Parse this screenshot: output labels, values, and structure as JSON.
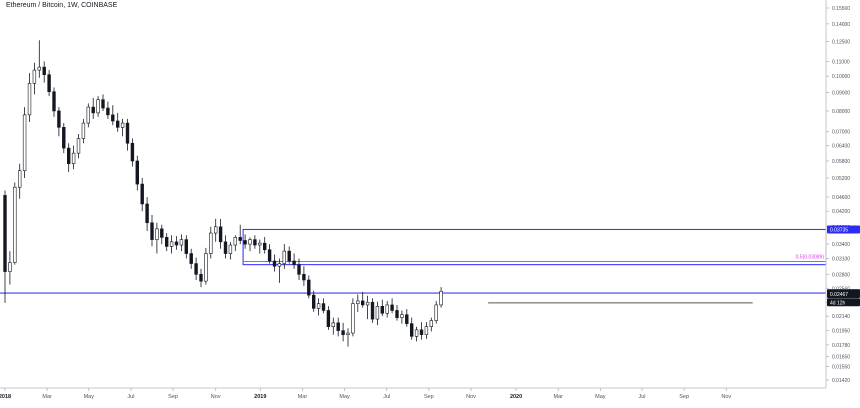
{
  "chart_data": {
    "type": "candlestick",
    "title": "Ethereum / Bitcoin, 1W, COINBASE",
    "ylim": [
      0.0142,
      0.155
    ],
    "y_ticks": [
      "0.15500",
      "0.14000",
      "0.12500",
      "0.11000",
      "0.10000",
      "0.09000",
      "0.08000",
      "0.07000",
      "0.06400",
      "0.05800",
      "0.05200",
      "0.04600",
      "0.04200",
      "0.03800",
      "0.03400",
      "0.03100",
      "0.02800",
      "0.02560",
      "0.02340",
      "0.02140",
      "0.01950",
      "0.01780",
      "0.01650",
      "0.01550",
      "0.01420"
    ],
    "x_ticks": [
      "2018",
      "Mar",
      "May",
      "Jul",
      "Sep",
      "Nov",
      "2019",
      "Mar",
      "May",
      "Jul",
      "Sep",
      "Nov",
      "2020",
      "Mar",
      "May",
      "Jul",
      "Sep",
      "Nov"
    ],
    "price_badges": [
      {
        "label": "0.03735",
        "price": 0.03735,
        "color": "#2c2cf0"
      },
      {
        "label": "0.02483",
        "price": 0.02483,
        "color": "#2c2cf0"
      },
      {
        "label": "0.02467",
        "price": 0.02467,
        "color": "#131722"
      },
      {
        "label": "4d 12h",
        "price": 0.0234,
        "color": "#131722"
      }
    ],
    "horizontal_lines": [
      {
        "price": 0.02483,
        "color": "#3b3bff",
        "full_width": true
      }
    ],
    "rectangles": [
      {
        "from_week": 49,
        "to_week": 173,
        "top": 0.03735,
        "bottom": 0.0298,
        "color": "#3b3bff"
      }
    ],
    "extra_lines": [
      {
        "from_week": 49,
        "to_week": 179,
        "price": 0.0304,
        "color": "#e23be8"
      },
      {
        "from_week": 99,
        "to_week": 153,
        "price": 0.0233,
        "color": "#555555"
      }
    ],
    "fib_label": {
      "text": "0.5(0.03089)",
      "price": 0.0307,
      "color": "#e23be8"
    },
    "candles": [
      [
        0.0465,
        0.048,
        0.0233,
        0.0285
      ],
      [
        0.0285,
        0.0325,
        0.0262,
        0.0302
      ],
      [
        0.0302,
        0.0505,
        0.0298,
        0.049
      ],
      [
        0.049,
        0.057,
        0.0455,
        0.0545
      ],
      [
        0.0545,
        0.082,
        0.052,
        0.078
      ],
      [
        0.078,
        0.102,
        0.0745,
        0.0955
      ],
      [
        0.0955,
        0.109,
        0.089,
        0.104
      ],
      [
        0.104,
        0.126,
        0.099,
        0.106
      ],
      [
        0.106,
        0.11,
        0.096,
        0.101
      ],
      [
        0.101,
        0.104,
        0.088,
        0.0905
      ],
      [
        0.0905,
        0.093,
        0.077,
        0.08
      ],
      [
        0.08,
        0.082,
        0.068,
        0.072
      ],
      [
        0.072,
        0.074,
        0.061,
        0.063
      ],
      [
        0.063,
        0.065,
        0.054,
        0.057
      ],
      [
        0.057,
        0.064,
        0.055,
        0.061
      ],
      [
        0.061,
        0.069,
        0.059,
        0.067
      ],
      [
        0.067,
        0.076,
        0.065,
        0.074
      ],
      [
        0.074,
        0.084,
        0.072,
        0.082
      ],
      [
        0.082,
        0.087,
        0.076,
        0.079
      ],
      [
        0.079,
        0.088,
        0.077,
        0.086
      ],
      [
        0.086,
        0.089,
        0.08,
        0.0815
      ],
      [
        0.0815,
        0.085,
        0.076,
        0.078
      ],
      [
        0.078,
        0.083,
        0.073,
        0.075
      ],
      [
        0.075,
        0.079,
        0.07,
        0.072
      ],
      [
        0.072,
        0.076,
        0.068,
        0.074
      ],
      [
        0.074,
        0.076,
        0.062,
        0.065
      ],
      [
        0.065,
        0.067,
        0.056,
        0.058
      ],
      [
        0.058,
        0.06,
        0.048,
        0.05
      ],
      [
        0.05,
        0.052,
        0.042,
        0.044
      ],
      [
        0.044,
        0.046,
        0.037,
        0.039
      ],
      [
        0.039,
        0.041,
        0.0335,
        0.035
      ],
      [
        0.035,
        0.039,
        0.032,
        0.0375
      ],
      [
        0.0375,
        0.0385,
        0.034,
        0.0355
      ],
      [
        0.0355,
        0.0365,
        0.0325,
        0.0335
      ],
      [
        0.0335,
        0.036,
        0.032,
        0.0345
      ],
      [
        0.0345,
        0.0358,
        0.0328,
        0.0338
      ],
      [
        0.0338,
        0.0362,
        0.0325,
        0.035
      ],
      [
        0.035,
        0.036,
        0.031,
        0.032
      ],
      [
        0.032,
        0.033,
        0.029,
        0.03
      ],
      [
        0.03,
        0.0312,
        0.027,
        0.028
      ],
      [
        0.028,
        0.029,
        0.0258,
        0.0268
      ],
      [
        0.0268,
        0.0332,
        0.0262,
        0.032
      ],
      [
        0.032,
        0.038,
        0.031,
        0.0365
      ],
      [
        0.0365,
        0.04,
        0.0345,
        0.038
      ],
      [
        0.038,
        0.04,
        0.033,
        0.0345
      ],
      [
        0.0345,
        0.036,
        0.031,
        0.032
      ],
      [
        0.032,
        0.0345,
        0.0308,
        0.0338
      ],
      [
        0.0338,
        0.036,
        0.0325,
        0.0355
      ],
      [
        0.0355,
        0.0385,
        0.034,
        0.0348
      ],
      [
        0.0348,
        0.0362,
        0.033,
        0.034
      ],
      [
        0.034,
        0.0355,
        0.0325,
        0.035
      ],
      [
        0.035,
        0.036,
        0.033,
        0.0338
      ],
      [
        0.0338,
        0.035,
        0.032,
        0.0342
      ],
      [
        0.0342,
        0.0356,
        0.032,
        0.0328
      ],
      [
        0.0328,
        0.034,
        0.03,
        0.0305
      ],
      [
        0.0305,
        0.0318,
        0.0285,
        0.0295
      ],
      [
        0.0295,
        0.031,
        0.0265,
        0.03
      ],
      [
        0.03,
        0.034,
        0.029,
        0.0325
      ],
      [
        0.0325,
        0.0335,
        0.03,
        0.0305
      ],
      [
        0.0305,
        0.032,
        0.029,
        0.0298
      ],
      [
        0.0298,
        0.031,
        0.027,
        0.028
      ],
      [
        0.028,
        0.0295,
        0.026,
        0.027
      ],
      [
        0.027,
        0.0278,
        0.024,
        0.0245
      ],
      [
        0.0245,
        0.0252,
        0.022,
        0.0225
      ],
      [
        0.0225,
        0.024,
        0.0215,
        0.0232
      ],
      [
        0.0232,
        0.024,
        0.0218,
        0.0222
      ],
      [
        0.0222,
        0.0228,
        0.0196,
        0.02
      ],
      [
        0.02,
        0.0212,
        0.019,
        0.0205
      ],
      [
        0.0205,
        0.0212,
        0.0188,
        0.0195
      ],
      [
        0.0195,
        0.0205,
        0.0182,
        0.019
      ],
      [
        0.019,
        0.0198,
        0.0176,
        0.0192
      ],
      [
        0.0192,
        0.024,
        0.0188,
        0.0232
      ],
      [
        0.0232,
        0.0246,
        0.022,
        0.0236
      ],
      [
        0.0236,
        0.025,
        0.0226,
        0.023
      ],
      [
        0.023,
        0.0244,
        0.021,
        0.0234
      ],
      [
        0.0234,
        0.024,
        0.0205,
        0.021
      ],
      [
        0.021,
        0.0235,
        0.0202,
        0.0228
      ],
      [
        0.0228,
        0.0238,
        0.0214,
        0.0218
      ],
      [
        0.0218,
        0.0236,
        0.0212,
        0.023
      ],
      [
        0.023,
        0.024,
        0.0218,
        0.0222
      ],
      [
        0.0222,
        0.023,
        0.0208,
        0.0212
      ],
      [
        0.0212,
        0.0222,
        0.0204,
        0.0216
      ],
      [
        0.0216,
        0.0224,
        0.02,
        0.0204
      ],
      [
        0.0204,
        0.0212,
        0.0184,
        0.0188
      ],
      [
        0.0188,
        0.02,
        0.0182,
        0.0196
      ],
      [
        0.0196,
        0.0206,
        0.0184,
        0.019
      ],
      [
        0.019,
        0.0206,
        0.0185,
        0.02
      ],
      [
        0.02,
        0.0212,
        0.0194,
        0.0208
      ],
      [
        0.0208,
        0.0236,
        0.0204,
        0.023
      ],
      [
        0.023,
        0.0258,
        0.0226,
        0.0251
      ]
    ]
  }
}
